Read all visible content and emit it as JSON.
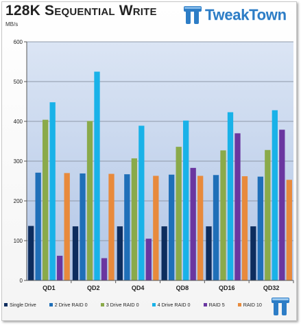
{
  "header": {
    "title": "128K Sequential Write",
    "unit": "MB/s",
    "logo_text": "TweakTown"
  },
  "colors": {
    "plot_bg_top": "#d9e3f3",
    "plot_bg_bottom": "#b4c8e7",
    "grid": "#8e98a8",
    "logo_blue": "#2d7dc6"
  },
  "chart_data": {
    "type": "bar",
    "title": "128K Sequential Write",
    "ylabel": "MB/s",
    "xlabel": "",
    "ylim": [
      0,
      600
    ],
    "yticks": [
      0,
      100,
      200,
      300,
      400,
      500,
      600
    ],
    "grid": true,
    "legend_position": "bottom",
    "categories": [
      "QD1",
      "QD2",
      "QD4",
      "QD8",
      "QD16",
      "QD32"
    ],
    "series": [
      {
        "name": "Single Drive",
        "color": "#0d2d5e",
        "values": [
          137,
          136,
          136,
          136,
          136,
          136
        ]
      },
      {
        "name": "2 Drive RAID 0",
        "color": "#1f6fb8",
        "values": [
          271,
          269,
          267,
          266,
          265,
          261
        ]
      },
      {
        "name": "3 Drive RAID 0",
        "color": "#8aaa4a",
        "values": [
          404,
          401,
          307,
          336,
          327,
          328
        ]
      },
      {
        "name": "4 Drive RAID 0",
        "color": "#19b2e8",
        "values": [
          448,
          525,
          389,
          402,
          423,
          428
        ]
      },
      {
        "name": "RAID 5",
        "color": "#6a36a0",
        "values": [
          62,
          56,
          105,
          283,
          370,
          379
        ]
      },
      {
        "name": "RAID 10",
        "color": "#e88a3c",
        "values": [
          270,
          268,
          263,
          263,
          262,
          253
        ]
      }
    ]
  }
}
